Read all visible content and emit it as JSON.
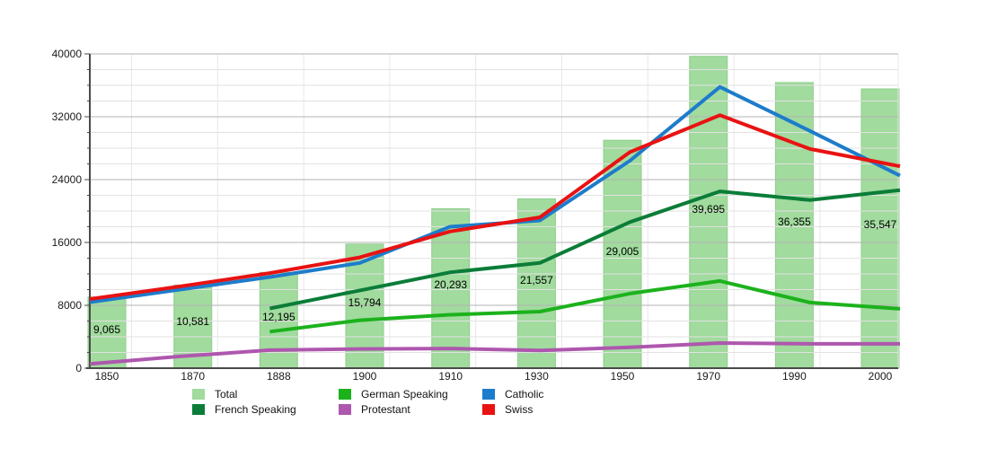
{
  "chart_data": {
    "type": "bar+line",
    "title": "",
    "categories": [
      "1850",
      "1870",
      "1888",
      "1900",
      "1910",
      "1930",
      "1950",
      "1970",
      "1990",
      "2000"
    ],
    "y_axis": {
      "min": 0,
      "max": 40000,
      "major_step": 8000,
      "minor_step": 2000,
      "tick_labels": [
        "0",
        "8000",
        "16000",
        "24000",
        "32000",
        "40000"
      ]
    },
    "grid": {
      "horizontal": true,
      "vertical": true
    },
    "bar_series": {
      "name": "Total",
      "color": "#a1db9e",
      "edge_color": "#8fce8c",
      "values": [
        9065,
        10581,
        12195,
        15794,
        20293,
        21557,
        29005,
        39695,
        36355,
        35547
      ],
      "labels": [
        "9,065",
        "10,581",
        "12,195",
        "15,794",
        "20,293",
        "21,557",
        "29,005",
        "39,695",
        "36,355",
        "35,547"
      ]
    },
    "line_series": [
      {
        "name": "Protestant",
        "color": "#ae57ae",
        "values": [
          550,
          1500,
          2300,
          2450,
          2500,
          2250,
          2650,
          3200,
          3100,
          3100
        ]
      },
      {
        "name": "German Speaking",
        "color": "#1cb21c",
        "values": [
          null,
          null,
          4650,
          6100,
          6800,
          7200,
          9500,
          11100,
          8350,
          7550
        ]
      },
      {
        "name": "French Speaking",
        "color": "#0b7d38",
        "values": [
          null,
          null,
          7600,
          9900,
          12200,
          13400,
          18600,
          22500,
          21400,
          22650
        ]
      },
      {
        "name": "Catholic",
        "color": "#1d7ccb",
        "values": [
          8400,
          10000,
          11600,
          13400,
          18000,
          18800,
          26400,
          35800,
          30200,
          24500
        ]
      },
      {
        "name": "Swiss",
        "color": "#e91212",
        "values": [
          8800,
          10400,
          12100,
          14100,
          17400,
          19200,
          27500,
          32200,
          27900,
          25700
        ]
      }
    ],
    "legend": [
      {
        "label": "Total",
        "color": "#a1db9e"
      },
      {
        "label": "German Speaking",
        "color": "#1cb21c"
      },
      {
        "label": "Catholic",
        "color": "#1d7ccb"
      },
      {
        "label": "French Speaking",
        "color": "#0b7d38"
      },
      {
        "label": "Protestant",
        "color": "#ae57ae"
      },
      {
        "label": "Swiss",
        "color": "#e91212"
      }
    ],
    "legend_position": "bottom"
  }
}
